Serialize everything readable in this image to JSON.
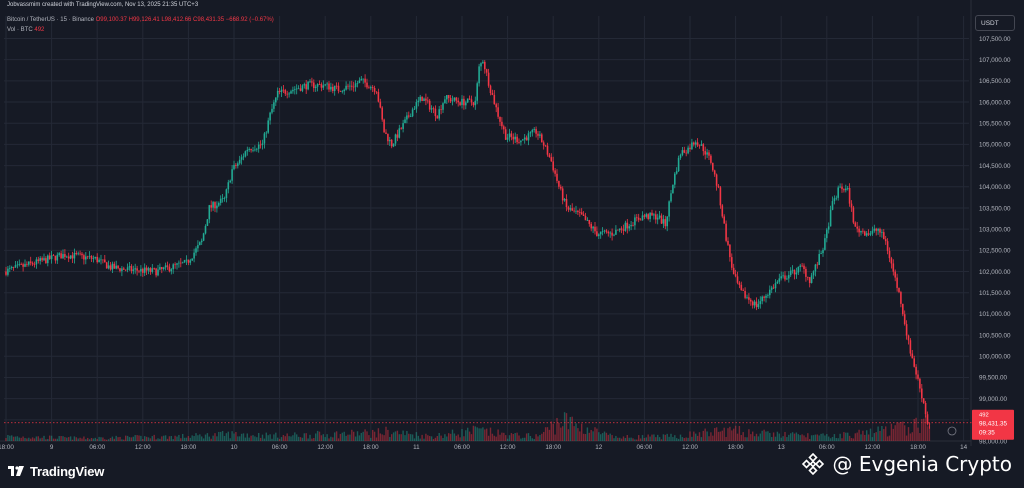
{
  "header": {
    "credit": "Jobvassmim created with TradingView.com, Nov 13, 2025 21:35 UTC+3",
    "symbol": "Bitcoin / TetherUS · 15 · Binance",
    "open": "O99,100.37",
    "high": "H99,126.41",
    "low": "L98,412.66",
    "close": "C98,431.35",
    "change": "−668.92 (−0.67%)",
    "vol_label": "Vol · BTC",
    "vol_value": "492"
  },
  "currency": "USDT",
  "colors": {
    "background": "#161a25",
    "grid": "#242936",
    "up": "#22ab94",
    "down": "#f23645",
    "text": "#b2b5be"
  },
  "price_tag": {
    "small_label": "492",
    "price": "98,431.35",
    "countdown": "09:35"
  },
  "footer": {
    "brand": "TradingView",
    "watermark": "@ Evgenia Crypto"
  },
  "chart_data": {
    "type": "candlestick",
    "title": "Bitcoin / TetherUS · 15 · Binance",
    "y_axis_ticks": [
      "107,500.00",
      "107,000.00",
      "106,500.00",
      "106,000.00",
      "105,500.00",
      "105,000.00",
      "104,500.00",
      "104,000.00",
      "103,500.00",
      "103,000.00",
      "102,500.00",
      "102,000.00",
      "101,500.00",
      "101,000.00",
      "100,500.00",
      "100,000.00",
      "99,500.00",
      "99,000.00",
      "98,500.00",
      "98,000.00"
    ],
    "x_axis_ticks": [
      "18:00",
      "9",
      "06:00",
      "12:00",
      "18:00",
      "10",
      "06:00",
      "12:00",
      "18:00",
      "11",
      "06:00",
      "12:00",
      "18:00",
      "12",
      "06:00",
      "12:00",
      "18:00",
      "13",
      "06:00",
      "12:00",
      "18:00",
      "14"
    ],
    "ylim": [
      98000,
      107700
    ],
    "x_unit_hours": 1,
    "price_path": [
      [
        0,
        102000
      ],
      [
        4,
        102200
      ],
      [
        8,
        102400
      ],
      [
        12,
        102300
      ],
      [
        14,
        102100
      ],
      [
        16,
        102050
      ],
      [
        20,
        102000
      ],
      [
        24,
        102200
      ],
      [
        26,
        102700
      ],
      [
        27,
        103500
      ],
      [
        29,
        103700
      ],
      [
        30,
        104400
      ],
      [
        31,
        104600
      ],
      [
        32,
        104900
      ],
      [
        34,
        105000
      ],
      [
        35,
        105700
      ],
      [
        36,
        106200
      ],
      [
        38,
        106300
      ],
      [
        40,
        106400
      ],
      [
        42,
        106400
      ],
      [
        44,
        106300
      ],
      [
        46,
        106400
      ],
      [
        47,
        106500
      ],
      [
        49,
        106300
      ],
      [
        50,
        105300
      ],
      [
        51,
        105000
      ],
      [
        52,
        105300
      ],
      [
        54,
        105900
      ],
      [
        55,
        106100
      ],
      [
        57,
        105700
      ],
      [
        58,
        106100
      ],
      [
        60,
        106000
      ],
      [
        62,
        106000
      ],
      [
        62.5,
        106800
      ],
      [
        63,
        107000
      ],
      [
        64,
        106300
      ],
      [
        65,
        105700
      ],
      [
        66,
        105200
      ],
      [
        68,
        105100
      ],
      [
        69,
        105200
      ],
      [
        70,
        105300
      ],
      [
        71,
        105000
      ],
      [
        72,
        104600
      ],
      [
        73,
        104000
      ],
      [
        74,
        103500
      ],
      [
        76,
        103300
      ],
      [
        78,
        102900
      ],
      [
        80,
        102900
      ],
      [
        82,
        103100
      ],
      [
        84,
        103300
      ],
      [
        86,
        103300
      ],
      [
        87,
        103100
      ],
      [
        88,
        104100
      ],
      [
        89,
        104800
      ],
      [
        90,
        104900
      ],
      [
        91,
        105100
      ],
      [
        92,
        104900
      ],
      [
        93,
        104600
      ],
      [
        94,
        103900
      ],
      [
        95,
        102800
      ],
      [
        96,
        101900
      ],
      [
        97,
        101500
      ],
      [
        99,
        101200
      ],
      [
        100,
        101400
      ],
      [
        102,
        101800
      ],
      [
        104,
        102000
      ],
      [
        105,
        102100
      ],
      [
        106,
        101800
      ],
      [
        107,
        102200
      ],
      [
        108,
        102700
      ],
      [
        109,
        103600
      ],
      [
        110,
        104000
      ],
      [
        111,
        103900
      ],
      [
        112,
        103000
      ],
      [
        114,
        102900
      ],
      [
        115,
        103000
      ],
      [
        116,
        102700
      ],
      [
        117,
        102000
      ],
      [
        118,
        101300
      ],
      [
        119,
        100300
      ],
      [
        120,
        99600
      ],
      [
        121,
        98900
      ],
      [
        121.5,
        98431
      ]
    ],
    "volume_path": [
      [
        0,
        2
      ],
      [
        10,
        1.2
      ],
      [
        24,
        2
      ],
      [
        30,
        3
      ],
      [
        36,
        2.2
      ],
      [
        49,
        3.5
      ],
      [
        50,
        4
      ],
      [
        56,
        2
      ],
      [
        62,
        4.5
      ],
      [
        66,
        2.5
      ],
      [
        70,
        2
      ],
      [
        73,
        9
      ],
      [
        80,
        1.5
      ],
      [
        88,
        2
      ],
      [
        95,
        4.5
      ],
      [
        100,
        3
      ],
      [
        108,
        2
      ],
      [
        112,
        3
      ],
      [
        119,
        6
      ],
      [
        121,
        8
      ]
    ],
    "last_price": 98431.35
  }
}
